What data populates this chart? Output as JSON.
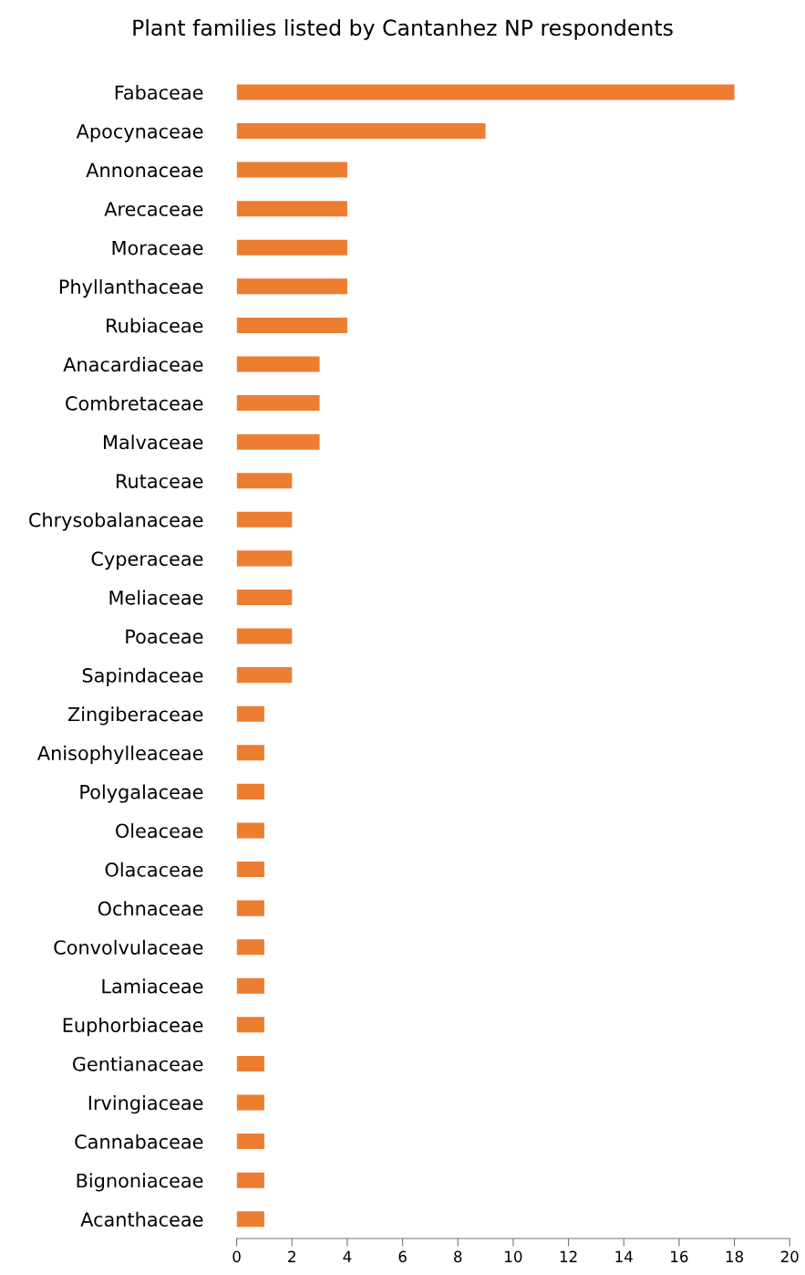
{
  "chart_data": {
    "type": "bar",
    "orientation": "horizontal",
    "title": "Plant families listed by Cantanhez NP respondents",
    "categories": [
      "Fabaceae",
      "Apocynaceae",
      "Annonaceae",
      "Arecaceae",
      "Moraceae",
      "Phyllanthaceae",
      "Rubiaceae",
      "Anacardiaceae",
      "Combretaceae",
      "Malvaceae",
      "Rutaceae",
      "Chrysobalanaceae",
      "Cyperaceae",
      "Meliaceae",
      "Poaceae",
      "Sapindaceae",
      "Zingiberaceae",
      "Anisophylleaceae",
      "Polygalaceae",
      "Oleaceae",
      "Olacaceae",
      "Ochnaceae",
      "Convolvulaceae",
      "Lamiaceae",
      "Euphorbiaceae",
      "Gentianaceae",
      "Irvingiaceae",
      "Cannabaceae",
      "Bignoniaceae",
      "Acanthaceae"
    ],
    "values": [
      18,
      9,
      4,
      4,
      4,
      4,
      4,
      3,
      3,
      3,
      2,
      2,
      2,
      2,
      2,
      2,
      1,
      1,
      1,
      1,
      1,
      1,
      1,
      1,
      1,
      1,
      1,
      1,
      1,
      1
    ],
    "color": "#ed7d31",
    "xlim": [
      0,
      20
    ],
    "xticks": [
      0,
      2,
      4,
      6,
      8,
      10,
      12,
      14,
      16,
      18,
      20
    ],
    "grid": false
  }
}
